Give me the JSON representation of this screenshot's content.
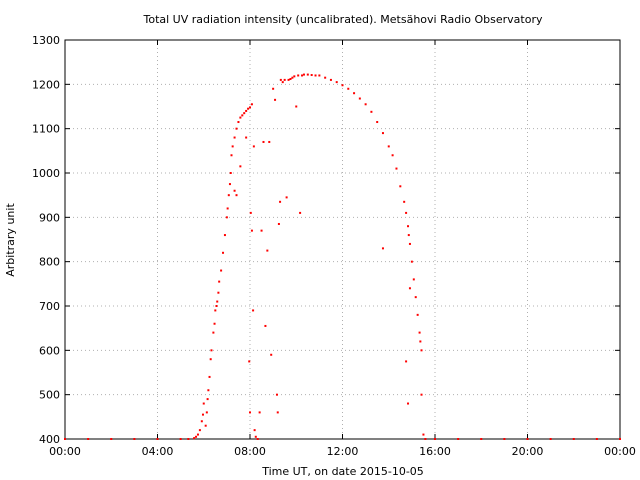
{
  "chart_data": {
    "type": "scatter",
    "title": "Total UV radiation intensity (uncalibrated). Metsähovi Radio Observatory",
    "xlabel": "Time UT, on date 2015-10-05",
    "ylabel": "Arbitrary unit",
    "xlim": [
      "00:00",
      "24:00"
    ],
    "ylim": [
      400,
      1300
    ],
    "x_ticks": [
      "00:00",
      "04:00",
      "08:00",
      "12:00",
      "16:00",
      "20:00",
      "00:00"
    ],
    "y_ticks": [
      400,
      500,
      600,
      700,
      800,
      900,
      1000,
      1100,
      1200,
      1300
    ],
    "grid": true,
    "marker_color": "#ff0000",
    "series": [
      {
        "points": [
          [
            "00:00",
            400
          ],
          [
            "01:00",
            400
          ],
          [
            "02:00",
            400
          ],
          [
            "03:00",
            400
          ],
          [
            "04:00",
            400
          ],
          [
            "05:00",
            400
          ],
          [
            "05:20",
            400
          ],
          [
            "05:35",
            402
          ],
          [
            "05:40",
            405
          ],
          [
            "05:45",
            410
          ],
          [
            "05:50",
            420
          ],
          [
            "05:55",
            440
          ],
          [
            "05:58",
            455
          ],
          [
            "06:00",
            480
          ],
          [
            "06:05",
            430
          ],
          [
            "06:08",
            460
          ],
          [
            "06:10",
            490
          ],
          [
            "06:12",
            510
          ],
          [
            "06:15",
            540
          ],
          [
            "06:18",
            580
          ],
          [
            "06:20",
            600
          ],
          [
            "06:25",
            640
          ],
          [
            "06:28",
            660
          ],
          [
            "06:30",
            690
          ],
          [
            "06:33",
            700
          ],
          [
            "06:35",
            710
          ],
          [
            "06:38",
            730
          ],
          [
            "06:40",
            755
          ],
          [
            "06:45",
            780
          ],
          [
            "06:50",
            820
          ],
          [
            "06:55",
            860
          ],
          [
            "07:00",
            900
          ],
          [
            "07:02",
            920
          ],
          [
            "07:05",
            950
          ],
          [
            "07:08",
            975
          ],
          [
            "07:10",
            1000
          ],
          [
            "07:12",
            1040
          ],
          [
            "07:15",
            1060
          ],
          [
            "07:20",
            1080
          ],
          [
            "07:25",
            1100
          ],
          [
            "07:30",
            1115
          ],
          [
            "07:35",
            1125
          ],
          [
            "07:40",
            1130
          ],
          [
            "07:45",
            1135
          ],
          [
            "07:50",
            1140
          ],
          [
            "07:55",
            1145
          ],
          [
            "08:00",
            1148
          ],
          [
            "08:05",
            1155
          ],
          [
            "07:20",
            960
          ],
          [
            "07:25",
            950
          ],
          [
            "07:35",
            1015
          ],
          [
            "07:50",
            1080
          ],
          [
            "07:58",
            575
          ],
          [
            "08:00",
            460
          ],
          [
            "08:02",
            910
          ],
          [
            "08:05",
            870
          ],
          [
            "08:08",
            690
          ],
          [
            "08:10",
            1060
          ],
          [
            "08:12",
            420
          ],
          [
            "08:15",
            405
          ],
          [
            "08:20",
            400
          ],
          [
            "08:25",
            460
          ],
          [
            "08:30",
            870
          ],
          [
            "08:35",
            1070
          ],
          [
            "08:40",
            655
          ],
          [
            "08:45",
            825
          ],
          [
            "08:50",
            1070
          ],
          [
            "08:55",
            590
          ],
          [
            "09:00",
            1190
          ],
          [
            "09:05",
            1165
          ],
          [
            "09:10",
            500
          ],
          [
            "09:12",
            460
          ],
          [
            "09:15",
            885
          ],
          [
            "09:18",
            935
          ],
          [
            "09:20",
            1210
          ],
          [
            "09:25",
            1205
          ],
          [
            "09:30",
            1210
          ],
          [
            "09:35",
            945
          ],
          [
            "09:40",
            1210
          ],
          [
            "09:45",
            1212
          ],
          [
            "09:50",
            1215
          ],
          [
            "09:55",
            1218
          ],
          [
            "10:00",
            1150
          ],
          [
            "10:05",
            1220
          ],
          [
            "10:10",
            910
          ],
          [
            "10:15",
            1220
          ],
          [
            "10:20",
            1222
          ],
          [
            "10:30",
            1222
          ],
          [
            "10:40",
            1221
          ],
          [
            "10:50",
            1220
          ],
          [
            "11:00",
            1220
          ],
          [
            "11:15",
            1215
          ],
          [
            "11:30",
            1210
          ],
          [
            "11:45",
            1205
          ],
          [
            "12:00",
            1198
          ],
          [
            "12:15",
            1190
          ],
          [
            "12:30",
            1180
          ],
          [
            "12:45",
            1168
          ],
          [
            "13:00",
            1155
          ],
          [
            "13:15",
            1138
          ],
          [
            "13:30",
            1115
          ],
          [
            "13:45",
            1090
          ],
          [
            "14:00",
            1060
          ],
          [
            "14:10",
            1040
          ],
          [
            "14:20",
            1010
          ],
          [
            "14:30",
            970
          ],
          [
            "14:40",
            935
          ],
          [
            "14:45",
            910
          ],
          [
            "14:50",
            880
          ],
          [
            "14:52",
            860
          ],
          [
            "14:55",
            840
          ],
          [
            "15:00",
            800
          ],
          [
            "15:05",
            760
          ],
          [
            "15:10",
            720
          ],
          [
            "15:15",
            680
          ],
          [
            "15:20",
            640
          ],
          [
            "15:22",
            620
          ],
          [
            "15:25",
            600
          ],
          [
            "13:45",
            830
          ],
          [
            "14:45",
            575
          ],
          [
            "14:50",
            480
          ],
          [
            "14:55",
            740
          ],
          [
            "15:25",
            500
          ],
          [
            "15:30",
            410
          ],
          [
            "15:35",
            400
          ],
          [
            "16:00",
            400
          ],
          [
            "17:00",
            400
          ],
          [
            "18:00",
            400
          ],
          [
            "19:00",
            400
          ],
          [
            "20:00",
            400
          ],
          [
            "21:00",
            400
          ],
          [
            "22:00",
            400
          ],
          [
            "23:00",
            400
          ],
          [
            "24:00",
            400
          ]
        ]
      }
    ]
  }
}
